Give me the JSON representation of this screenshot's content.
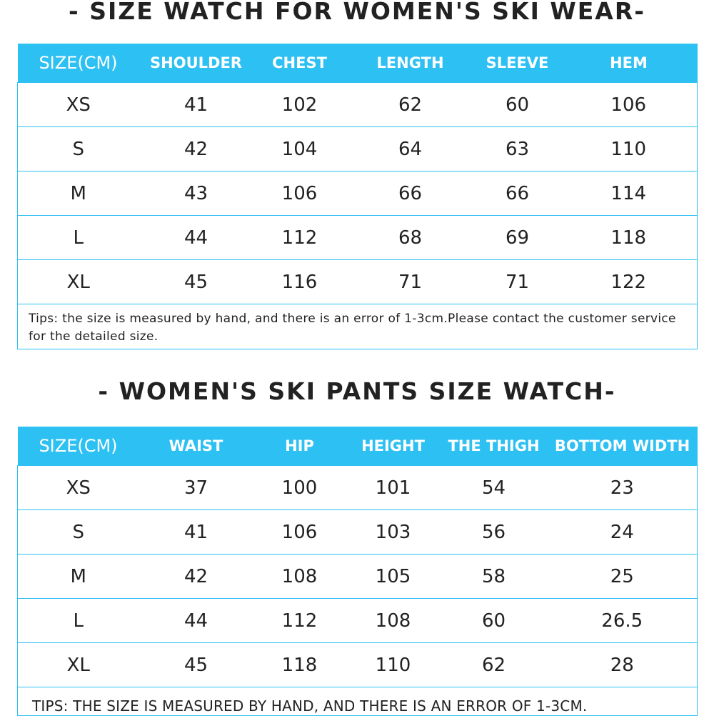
{
  "top_section": {
    "title": "- SIZE WATCH FOR WOMEN'S SKI WEAR-",
    "headers": [
      "SIZE(CM)",
      "SHOULDER",
      "CHEST",
      "LENGTH",
      "SLEEVE",
      "HEM"
    ],
    "rows": [
      [
        "XS",
        "41",
        "102",
        "62",
        "60",
        "106"
      ],
      [
        "S",
        "42",
        "104",
        "64",
        "63",
        "110"
      ],
      [
        "M",
        "43",
        "106",
        "66",
        "66",
        "114"
      ],
      [
        "L",
        "44",
        "112",
        "68",
        "69",
        "118"
      ],
      [
        "XL",
        "45",
        "116",
        "71",
        "71",
        "122"
      ]
    ],
    "tips": "Tips: the size is measured by hand, and there is an error of 1-3cm.Please contact the customer service for the detailed size."
  },
  "bottom_section": {
    "title": "- WOMEN'S SKI PANTS SIZE WATCH-",
    "headers": [
      "SIZE(CM)",
      "WAIST",
      "HIP",
      "HEIGHT",
      "THE THIGH",
      "BOTTOM WIDTH"
    ],
    "rows": [
      [
        "XS",
        "37",
        "100",
        "101",
        "54",
        "23"
      ],
      [
        "S",
        "41",
        "106",
        "103",
        "56",
        "24"
      ],
      [
        "M",
        "42",
        "108",
        "105",
        "58",
        "25"
      ],
      [
        "L",
        "44",
        "112",
        "108",
        "60",
        "26.5"
      ],
      [
        "XL",
        "45",
        "118",
        "110",
        "62",
        "28"
      ]
    ],
    "tips": "TIPS: THE SIZE IS MEASURED BY HAND, AND THERE IS AN ERROR OF 1-3CM."
  },
  "colors": {
    "header_bg": "#2cc0f3",
    "header_text": "#ffffff",
    "border": "#2cc0f3",
    "body_text": "#222222"
  }
}
